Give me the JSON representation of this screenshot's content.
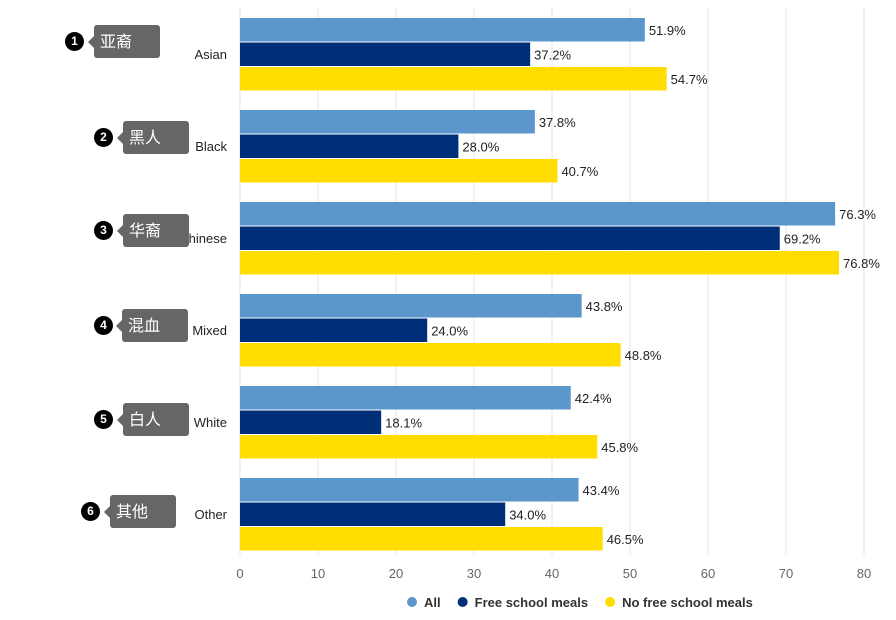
{
  "chart_data": {
    "type": "bar",
    "orientation": "horizontal",
    "categories": [
      "Asian",
      "Black",
      "Chinese",
      "Mixed",
      "White",
      "Other"
    ],
    "series": [
      {
        "name": "All",
        "color": "#5b96cc",
        "values": [
          51.9,
          37.8,
          76.3,
          43.8,
          42.4,
          43.4
        ]
      },
      {
        "name": "Free school meals",
        "color": "#002f79",
        "values": [
          37.2,
          28.0,
          69.2,
          24.0,
          18.1,
          34.0
        ]
      },
      {
        "name": "No free school meals",
        "color": "#ffdd00",
        "values": [
          54.7,
          40.7,
          76.8,
          48.8,
          45.8,
          46.5
        ]
      }
    ],
    "value_suffix": "%",
    "xlim": [
      0,
      80
    ],
    "xticks": [
      0,
      10,
      20,
      30,
      40,
      50,
      60,
      70,
      80
    ],
    "grid": true,
    "legend": "bottom"
  },
  "annotations": [
    {
      "number": "1",
      "label": "亚裔"
    },
    {
      "number": "2",
      "label": "黑人"
    },
    {
      "number": "3",
      "label": "华裔"
    },
    {
      "number": "4",
      "label": "混血"
    },
    {
      "number": "5",
      "label": "白人"
    },
    {
      "number": "6",
      "label": "其他"
    }
  ]
}
